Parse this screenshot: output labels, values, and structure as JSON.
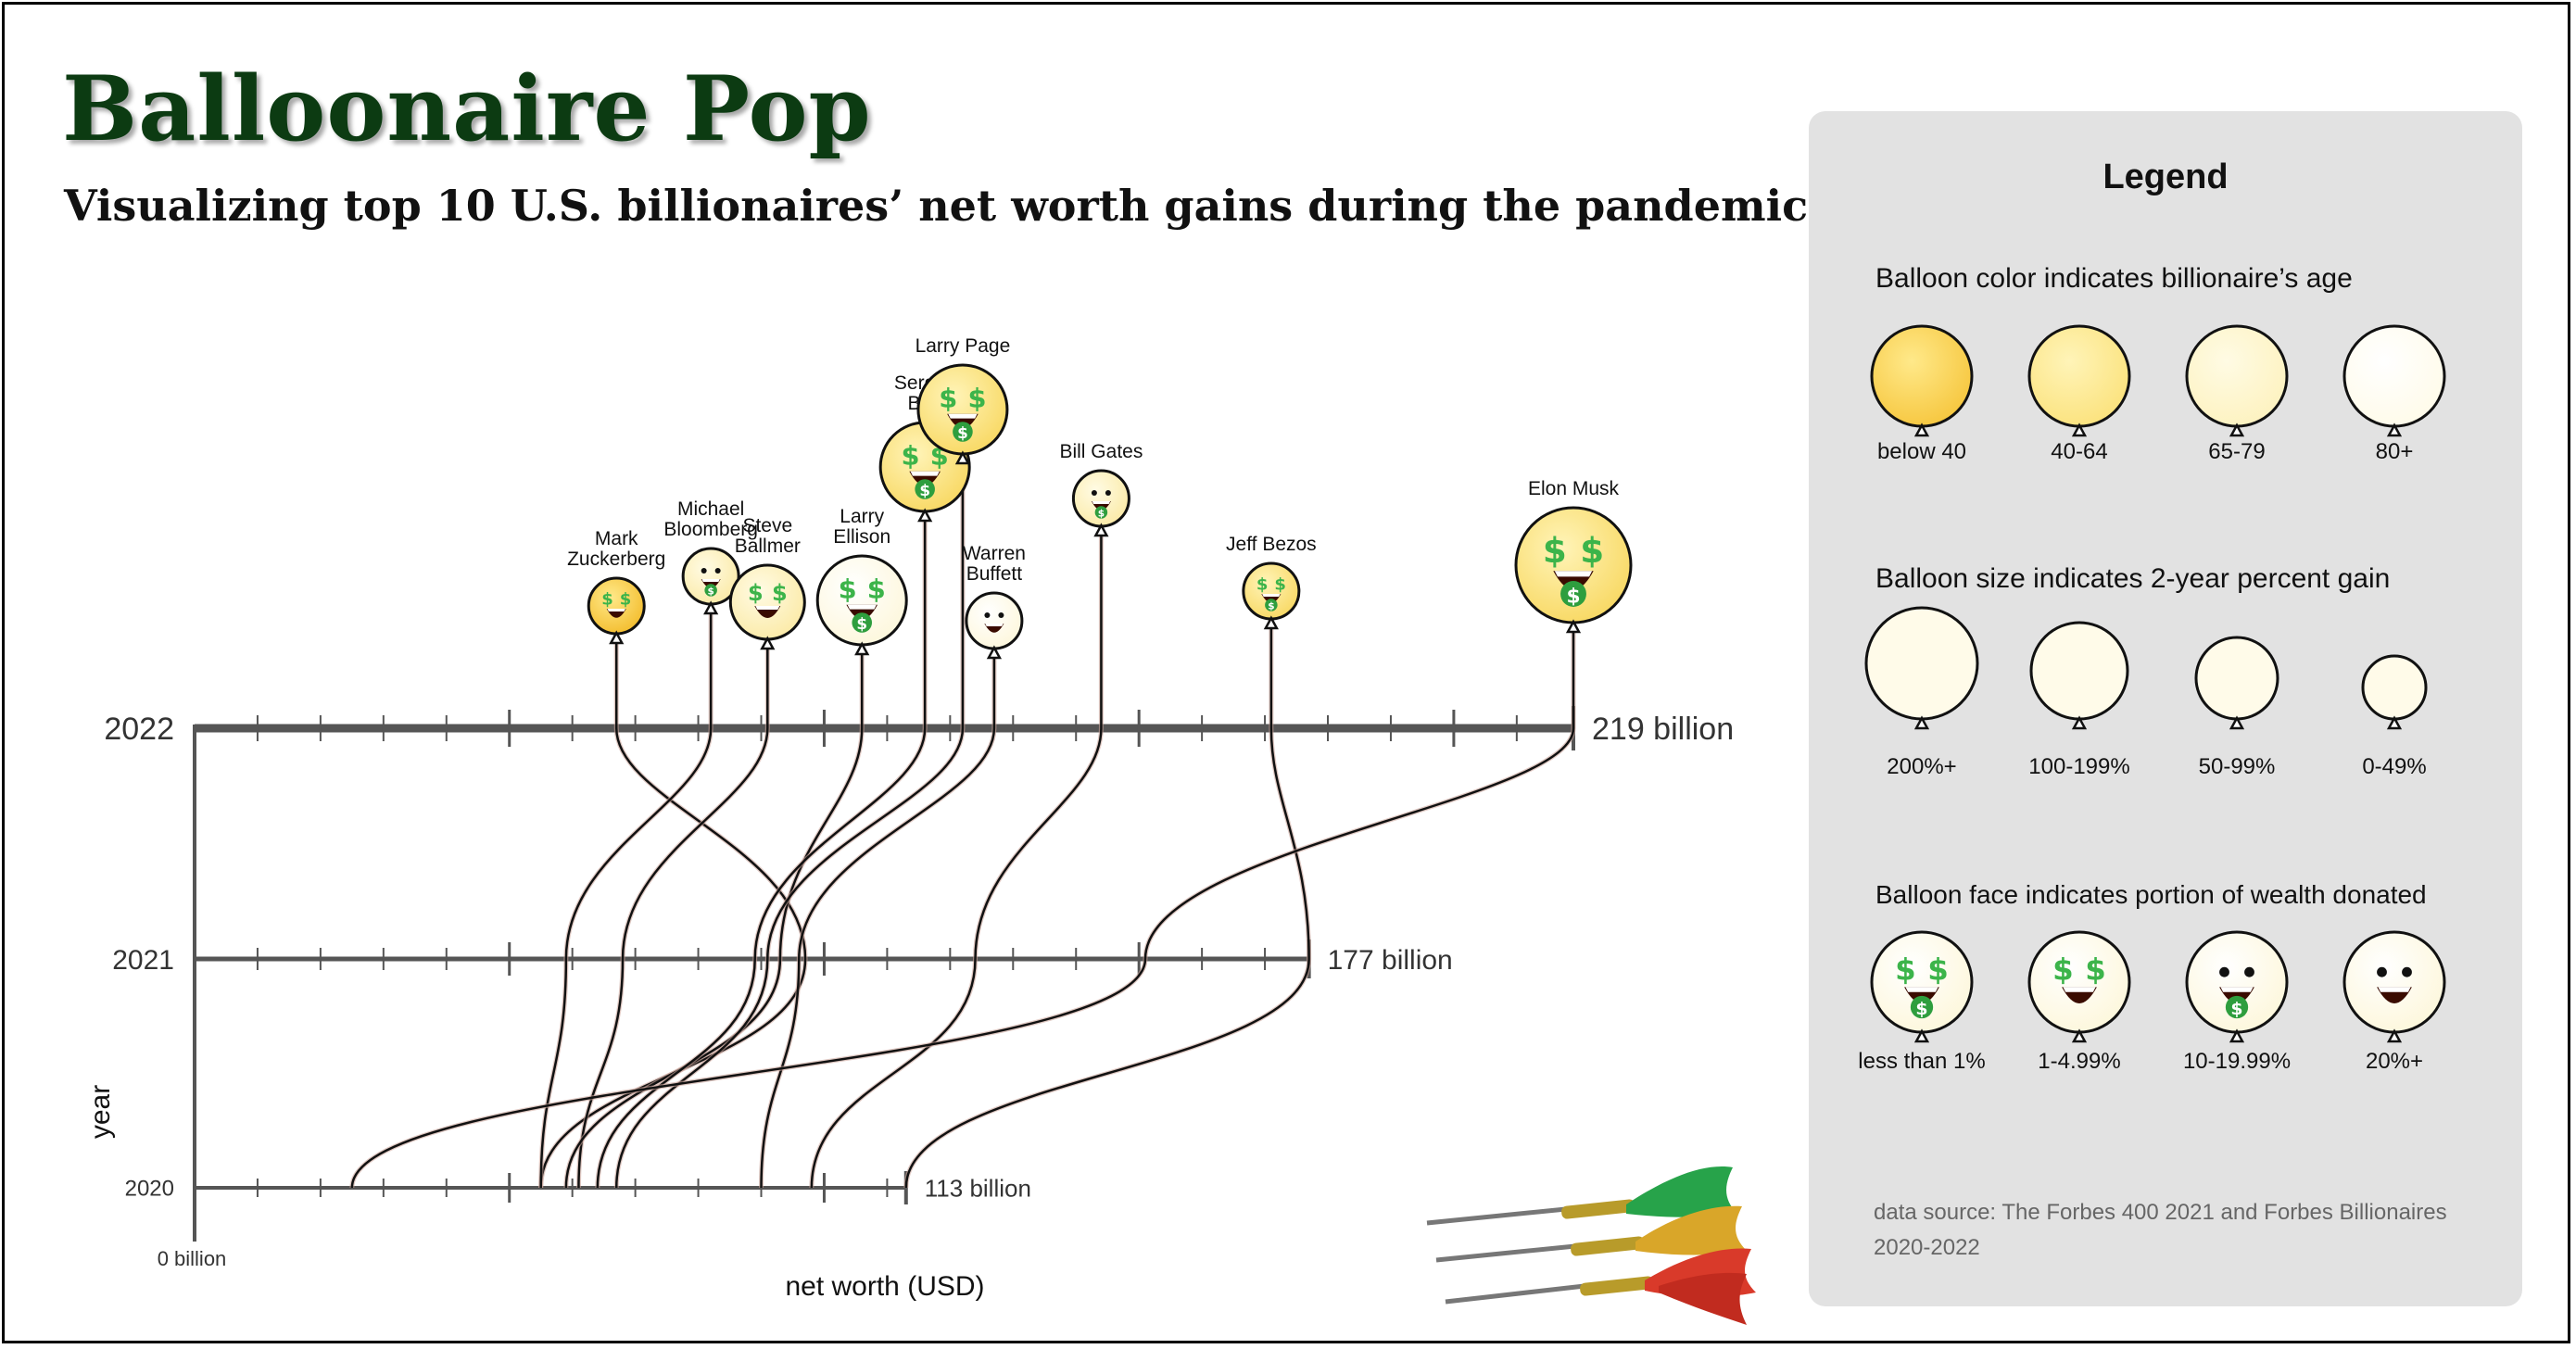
{
  "title": "Balloonaire Pop",
  "subtitle": "Visualizing top 10 U.S. billionaires’ net worth gains during the pandemic",
  "chart_data": {
    "type": "line",
    "title": "Balloonaire Pop",
    "subtitle": "Visualizing top 10 U.S. billionaires’ net worth gains during the pandemic",
    "xlabel": "net worth (USD)",
    "ylabel": "year",
    "x_origin_label": "0 billion",
    "xlim": [
      0,
      219
    ],
    "years": [
      {
        "year": "2020",
        "max_label": "113 billion",
        "max": 113
      },
      {
        "year": "2021",
        "max_label": "177 billion",
        "max": 177
      },
      {
        "year": "2022",
        "max_label": "219 billion",
        "max": 219
      }
    ],
    "series": [
      {
        "name": "Mark Zuckerberg",
        "values": [
          55,
          97,
          67
        ],
        "age_group": 0,
        "size_group": 3,
        "face": 1,
        "label_lines": [
          "Mark",
          "Zuckerberg"
        ]
      },
      {
        "name": "Michael Bloomberg",
        "values": [
          55,
          59,
          82
        ],
        "age_group": 2,
        "size_group": 3,
        "face": 2,
        "label_lines": [
          "Michael",
          "Bloomberg"
        ]
      },
      {
        "name": "Steve Ballmer",
        "values": [
          61,
          68,
          91
        ],
        "age_group": 2,
        "size_group": 2,
        "face": 1,
        "label_lines": [
          "Steve",
          "Ballmer"
        ]
      },
      {
        "name": "Larry Ellison",
        "values": [
          59,
          93,
          106
        ],
        "age_group": 3,
        "size_group": 1,
        "face": 0,
        "label_lines": [
          "Larry",
          "Ellison"
        ]
      },
      {
        "name": "Sergey Brin",
        "values": [
          64,
          89,
          116
        ],
        "age_group": 1,
        "size_group": 1,
        "face": 0,
        "label_lines": [
          "Sergey",
          "Brin"
        ]
      },
      {
        "name": "Larry Page",
        "values": [
          67,
          91,
          122
        ],
        "age_group": 1,
        "size_group": 1,
        "face": 0,
        "label_lines": [
          "Larry Page"
        ]
      },
      {
        "name": "Warren Buffett",
        "values": [
          90,
          96,
          127
        ],
        "age_group": 3,
        "size_group": 3,
        "face": 3,
        "label_lines": [
          "Warren",
          "Buffett"
        ]
      },
      {
        "name": "Bill Gates",
        "values": [
          98,
          124,
          144
        ],
        "age_group": 2,
        "size_group": 3,
        "face": 2,
        "label_lines": [
          "Bill Gates"
        ]
      },
      {
        "name": "Jeff Bezos",
        "values": [
          113,
          177,
          171
        ],
        "age_group": 1,
        "size_group": 3,
        "face": 0,
        "label_lines": [
          "Jeff Bezos"
        ]
      },
      {
        "name": "Elon Musk",
        "values": [
          25,
          151,
          219
        ],
        "age_group": 1,
        "size_group": 0,
        "face": 0,
        "label_lines": [
          "Elon Musk"
        ]
      }
    ]
  },
  "legend": {
    "heading": "Legend",
    "color": {
      "title": "Balloon color indicates billionaire’s age",
      "items": [
        {
          "label": "below 40",
          "color": "#f6c63d"
        },
        {
          "label": "40-64",
          "color": "#fbe27c"
        },
        {
          "label": "65-79",
          "color": "#fdf2bf"
        },
        {
          "label": "80+",
          "color": "#fffbe9"
        }
      ]
    },
    "size": {
      "title": "Balloon size indicates 2-year percent gain",
      "items": [
        {
          "label": "200%+"
        },
        {
          "label": "100-199%"
        },
        {
          "label": "50-99%"
        },
        {
          "label": "0-49%"
        }
      ]
    },
    "face": {
      "title": "Balloon face indicates portion of wealth donated",
      "items": [
        {
          "label": "less than 1%"
        },
        {
          "label": "1-4.99%"
        },
        {
          "label": "10-19.99%"
        },
        {
          "label": "20%+"
        }
      ]
    }
  },
  "source": "data source: The Forbes 400 2021 and Forbes Billionaires 2020-2022",
  "colors": {
    "age": [
      "#f6c63d",
      "#fbe27c",
      "#fdf2bf",
      "#fffbe9"
    ],
    "axis": "#555555",
    "title": "#0c3b12",
    "dollar": "#3cb44a",
    "mouth": "#3a0b00",
    "tongue": "#2e9e3e",
    "legend_bg": "#e2e2e2"
  },
  "decoration": {
    "icon": "darts-icon"
  }
}
